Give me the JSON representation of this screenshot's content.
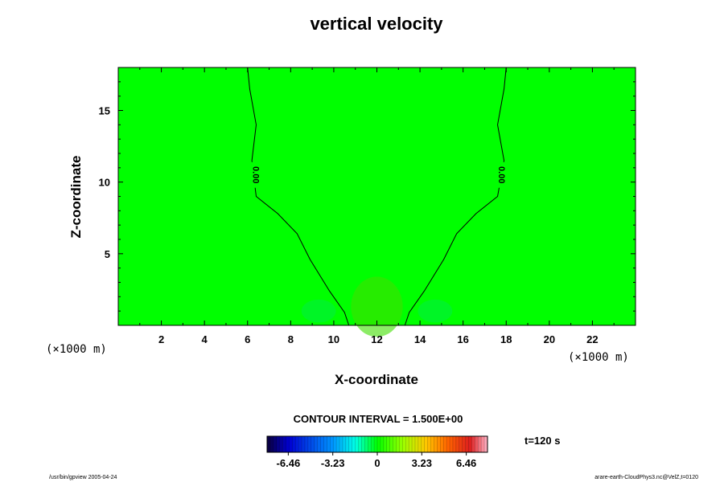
{
  "chart_data": {
    "type": "heatmap",
    "title": "vertical velocity",
    "xlabel": "X-coordinate",
    "ylabel": "Z-coordinate",
    "x_unit": "(×1000 m)",
    "y_unit": "(×1000 m)",
    "xlim": [
      0,
      24
    ],
    "ylim": [
      0,
      18
    ],
    "xticks": [
      2,
      4,
      6,
      8,
      10,
      12,
      14,
      16,
      18,
      20,
      22
    ],
    "yticks": [
      5,
      10,
      15
    ],
    "field_color": "#00ff00",
    "contours": [
      {
        "value": "0.00",
        "label": "0.00",
        "label_at": [
          6.4,
          10.5
        ],
        "points": [
          [
            6.0,
            18
          ],
          [
            6.1,
            16.5
          ],
          [
            6.4,
            14
          ],
          [
            6.2,
            11.5
          ],
          [
            6.4,
            9
          ],
          [
            7.4,
            7.8
          ],
          [
            8.3,
            6.4
          ],
          [
            8.9,
            4.6
          ],
          [
            9.8,
            2.4
          ],
          [
            10.5,
            0.9
          ],
          [
            10.7,
            0
          ]
        ]
      },
      {
        "value": "0.00",
        "label": "0.00",
        "label_at": [
          17.8,
          10.5
        ],
        "points": [
          [
            18.0,
            18
          ],
          [
            17.9,
            16.5
          ],
          [
            17.6,
            14
          ],
          [
            17.9,
            11.5
          ],
          [
            17.6,
            9
          ],
          [
            16.6,
            7.8
          ],
          [
            15.7,
            6.4
          ],
          [
            15.1,
            4.6
          ],
          [
            14.2,
            2.4
          ],
          [
            13.5,
            0.9
          ],
          [
            13.3,
            0
          ]
        ]
      }
    ],
    "highlights": [
      {
        "x": 12.0,
        "y": 1.3,
        "rx": 1.2,
        "ry": 2.1,
        "color": "#3fe000"
      },
      {
        "x": 9.3,
        "y": 1.0,
        "rx": 0.8,
        "ry": 0.8,
        "color": "#00ef40"
      },
      {
        "x": 14.7,
        "y": 1.0,
        "rx": 0.8,
        "ry": 0.8,
        "color": "#00ef40"
      }
    ],
    "contour_interval": "CONTOUR INTERVAL = 1.500E+00",
    "colorbar": {
      "min": -8.0,
      "max": 8.0,
      "ticks": [
        -6.46,
        -3.23,
        0,
        3.23,
        6.46
      ],
      "tick_labels": [
        "-6.46",
        "-3.23",
        "0",
        "3.23",
        "6.46"
      ],
      "n_steps": 70
    },
    "time_label": "t=120 s"
  },
  "footer": {
    "left": "/usr/bin/gpview 2005-04-24",
    "right": "arare-earth-CloudPhys3.nc@VelZ,t=0120"
  }
}
